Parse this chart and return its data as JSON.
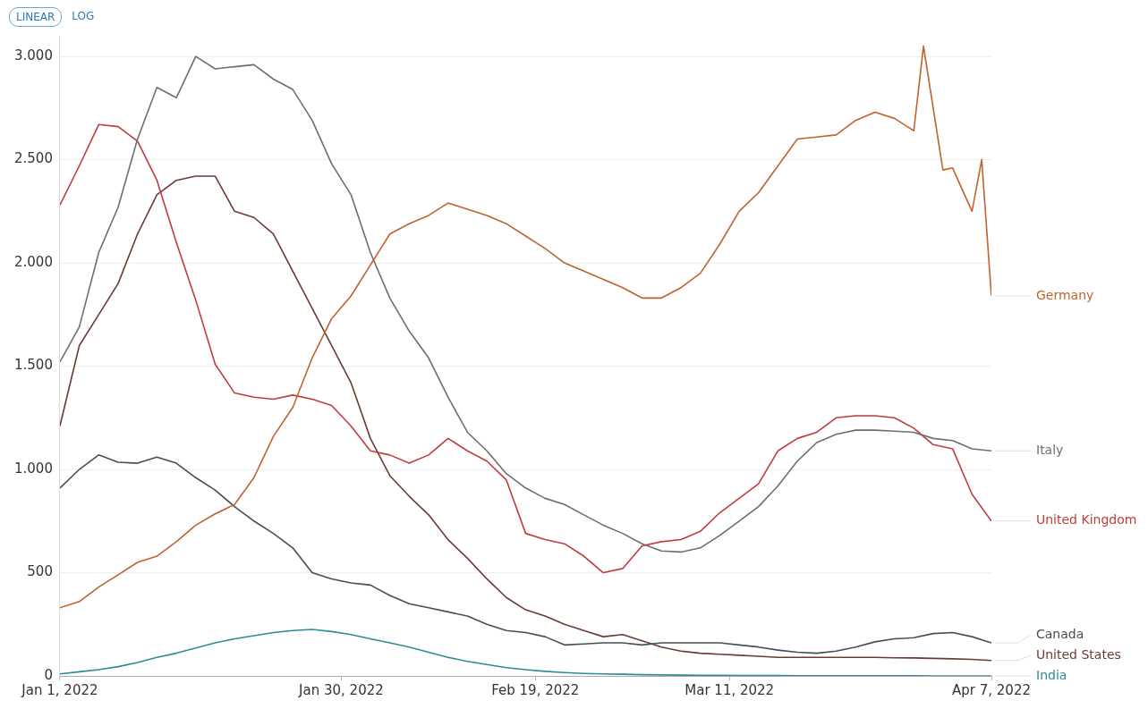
{
  "chart_data": {
    "type": "line",
    "annotations": [
      "LINEAR",
      "LOG"
    ],
    "x": [
      "2022-01-01",
      "2022-01-03",
      "2022-01-05",
      "2022-01-07",
      "2022-01-09",
      "2022-01-11",
      "2022-01-13",
      "2022-01-15",
      "2022-01-17",
      "2022-01-19",
      "2022-01-21",
      "2022-01-23",
      "2022-01-25",
      "2022-01-27",
      "2022-01-29",
      "2022-01-31",
      "2022-02-02",
      "2022-02-04",
      "2022-02-06",
      "2022-02-08",
      "2022-02-10",
      "2022-02-12",
      "2022-02-14",
      "2022-02-16",
      "2022-02-18",
      "2022-02-20",
      "2022-02-22",
      "2022-02-24",
      "2022-02-26",
      "2022-02-28",
      "2022-03-02",
      "2022-03-04",
      "2022-03-06",
      "2022-03-08",
      "2022-03-10",
      "2022-03-12",
      "2022-03-14",
      "2022-03-16",
      "2022-03-18",
      "2022-03-20",
      "2022-03-22",
      "2022-03-24",
      "2022-03-26",
      "2022-03-28",
      "2022-03-30",
      "2022-04-01",
      "2022-04-03",
      "2022-04-05",
      "2022-04-07"
    ],
    "series": [
      {
        "name": "Germany",
        "color": "#c0622d",
        "x": [
          "2022-01-01",
          "2022-01-03",
          "2022-01-05",
          "2022-01-07",
          "2022-01-09",
          "2022-01-11",
          "2022-01-13",
          "2022-01-15",
          "2022-01-17",
          "2022-01-19",
          "2022-01-21",
          "2022-01-23",
          "2022-01-25",
          "2022-01-27",
          "2022-01-29",
          "2022-01-31",
          "2022-02-02",
          "2022-02-04",
          "2022-02-06",
          "2022-02-08",
          "2022-02-10",
          "2022-02-12",
          "2022-02-14",
          "2022-02-16",
          "2022-02-18",
          "2022-02-20",
          "2022-02-22",
          "2022-02-24",
          "2022-02-26",
          "2022-02-28",
          "2022-03-02",
          "2022-03-04",
          "2022-03-06",
          "2022-03-08",
          "2022-03-10",
          "2022-03-12",
          "2022-03-14",
          "2022-03-16",
          "2022-03-18",
          "2022-03-20",
          "2022-03-22",
          "2022-03-24",
          "2022-03-26",
          "2022-03-28",
          "2022-03-30",
          "2022-03-31",
          "2022-04-02",
          "2022-04-03",
          "2022-04-05",
          "2022-04-06",
          "2022-04-07"
        ],
        "values": [
          330,
          360,
          430,
          490,
          550,
          580,
          650,
          730,
          785,
          830,
          960,
          1160,
          1300,
          1540,
          1730,
          1840,
          1990,
          2140,
          2190,
          2230,
          2290,
          2260,
          2230,
          2190,
          2130,
          2070,
          2000,
          1960,
          1920,
          1880,
          1830,
          1830,
          1880,
          1950,
          2090,
          2250,
          2340,
          2470,
          2600,
          2610,
          2620,
          2690,
          2730,
          2700,
          2640,
          3050,
          2450,
          2460,
          2250,
          2500,
          1840
        ]
      },
      {
        "name": "Italy",
        "color": "#6e6e6e",
        "values": [
          1520,
          1690,
          2050,
          2270,
          2600,
          2850,
          2800,
          3000,
          2940,
          2950,
          2960,
          2890,
          2840,
          2690,
          2480,
          2330,
          2050,
          1830,
          1670,
          1540,
          1350,
          1180,
          1090,
          980,
          910,
          860,
          830,
          780,
          730,
          690,
          640,
          605,
          600,
          620,
          680,
          750,
          820,
          920,
          1040,
          1130,
          1170,
          1190,
          1190,
          1185,
          1180,
          1150,
          1140,
          1100,
          1090
        ]
      },
      {
        "name": "United Kingdom",
        "color": "#c23b3b",
        "values": [
          2280,
          2470,
          2670,
          2660,
          2590,
          2400,
          2100,
          1820,
          1510,
          1370,
          1350,
          1340,
          1360,
          1340,
          1310,
          1210,
          1090,
          1070,
          1030,
          1070,
          1150,
          1090,
          1040,
          950,
          690,
          660,
          640,
          580,
          500,
          520,
          630,
          650,
          660,
          700,
          790,
          860,
          930,
          1090,
          1150,
          1180,
          1250,
          1260,
          1260,
          1250,
          1200,
          1120,
          1100,
          880,
          750
        ]
      },
      {
        "name": "Canada",
        "color": "#44504f",
        "values": [
          910,
          1000,
          1070,
          1035,
          1030,
          1060,
          1030,
          960,
          900,
          820,
          750,
          690,
          620,
          500,
          470,
          450,
          440,
          390,
          350,
          330,
          310,
          290,
          250,
          220,
          210,
          190,
          150,
          155,
          160,
          160,
          150,
          160,
          160,
          160,
          160,
          150,
          140,
          125,
          115,
          110,
          120,
          140,
          165,
          180,
          185,
          205,
          210,
          190,
          160
        ]
      },
      {
        "name": "United States",
        "color": "#6a3b33",
        "values": [
          1210,
          1600,
          1750,
          1900,
          2140,
          2330,
          2400,
          2420,
          2420,
          2250,
          2220,
          2140,
          1960,
          1780,
          1600,
          1420,
          1150,
          970,
          870,
          780,
          660,
          570,
          470,
          380,
          320,
          290,
          250,
          220,
          190,
          200,
          170,
          140,
          120,
          110,
          105,
          100,
          95,
          90,
          90,
          90,
          90,
          90,
          90,
          88,
          87,
          85,
          83,
          80,
          75
        ]
      },
      {
        "name": "India",
        "color": "#2e8b95",
        "values": [
          10,
          20,
          30,
          45,
          65,
          90,
          110,
          135,
          160,
          180,
          195,
          210,
          220,
          225,
          215,
          200,
          180,
          160,
          140,
          115,
          90,
          70,
          55,
          40,
          30,
          22,
          16,
          12,
          10,
          8,
          6,
          5,
          4,
          3,
          3,
          2,
          2,
          2,
          1,
          1,
          1,
          1,
          1,
          1,
          1,
          0,
          0,
          0,
          0
        ]
      }
    ],
    "xlim": [
      "2022-01-01",
      "2022-04-07"
    ],
    "xticks": [
      {
        "value": "2022-01-01",
        "label": "Jan 1, 2022"
      },
      {
        "value": "2022-01-30",
        "label": "Jan 30, 2022"
      },
      {
        "value": "2022-02-19",
        "label": "Feb 19, 2022"
      },
      {
        "value": "2022-03-11",
        "label": "Mar 11, 2022"
      },
      {
        "value": "2022-04-07",
        "label": "Apr 7, 2022"
      }
    ],
    "ylim": [
      0,
      3100
    ],
    "yticks": [
      0,
      500,
      {
        "value": 1000,
        "label": "1.000"
      },
      {
        "value": 1500,
        "label": "1.500"
      },
      {
        "value": 2000,
        "label": "2.000"
      },
      {
        "value": 2500,
        "label": "2.500"
      },
      {
        "value": 3000,
        "label": "3.000"
      }
    ],
    "grid": "y",
    "legend": false,
    "marker": "none",
    "line_style": "solid"
  }
}
